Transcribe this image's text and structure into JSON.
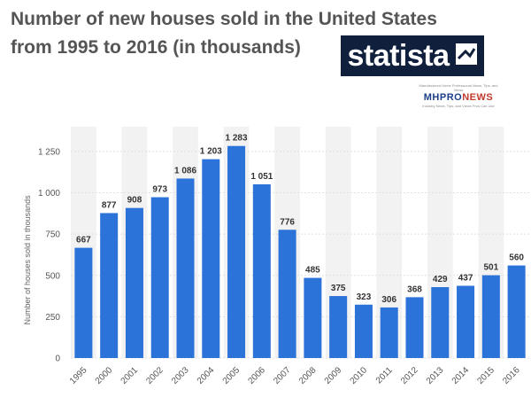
{
  "chart_data": {
    "type": "bar",
    "title": "Number of new houses sold in the United States from 1995 to 2016 (in thousands)",
    "title_lines": [
      "Number of new houses sold in the United States",
      "from 1995 to 2016 (in thousands)"
    ],
    "xlabel": "",
    "ylabel": "Number of houses sold in thousands",
    "categories": [
      "1995",
      "2000",
      "2001",
      "2002",
      "2003",
      "2004",
      "2005",
      "2006",
      "2007",
      "2008",
      "2009",
      "2010",
      "2011",
      "2012",
      "2013",
      "2014",
      "2015",
      "2016"
    ],
    "values": [
      667,
      877,
      908,
      973,
      1086,
      1203,
      1283,
      1051,
      776,
      485,
      375,
      323,
      306,
      368,
      429,
      437,
      501,
      560
    ],
    "value_labels": [
      "667",
      "877",
      "908",
      "973",
      "1 086",
      "1 203",
      "1 283",
      "1 051",
      "776",
      "485",
      "375",
      "323",
      "306",
      "368",
      "429",
      "437",
      "501",
      "560"
    ],
    "y_ticks": [
      0,
      250,
      500,
      750,
      1000,
      1250
    ],
    "y_tick_labels": [
      "0",
      "250",
      "500",
      "750",
      "1 000",
      "1 250"
    ],
    "ylim": [
      0,
      1400
    ],
    "grid": true,
    "bar_color": "#2b72d9",
    "band_color": "#f2f2f2"
  },
  "logo": {
    "text": "statista"
  },
  "watermark": {
    "top_line": "Manufactured Home Professional News, Tips, and Views",
    "brand_part1": "MHPRO",
    "brand_part2": "NEWS",
    "bottom_line": "Industry News, Tips, and Views Pros Can Use"
  }
}
